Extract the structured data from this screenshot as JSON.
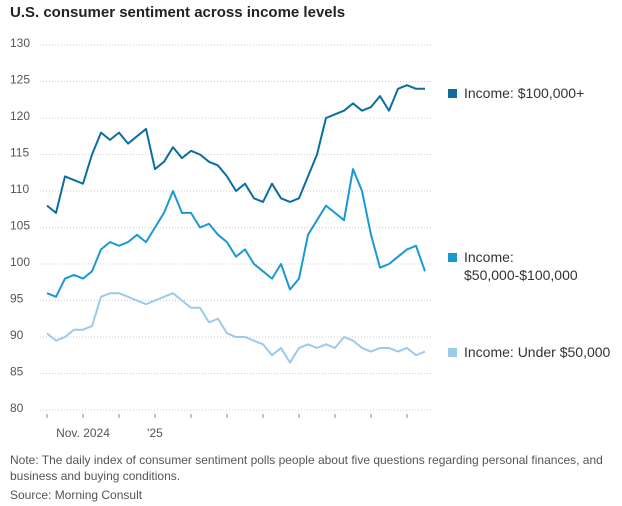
{
  "chart_data": {
    "type": "line",
    "title": "U.S. consumer sentiment across income levels",
    "categories": [
      null,
      null,
      null,
      null,
      "Nov. 2024",
      null,
      null,
      null,
      null,
      null,
      null,
      null,
      "'25",
      null,
      null,
      null,
      null,
      null,
      null,
      null,
      null,
      null,
      null,
      null,
      null,
      null,
      null,
      null,
      null,
      null,
      null,
      null,
      null,
      null,
      null,
      null,
      null,
      null,
      null,
      null,
      null,
      null,
      null
    ],
    "series": [
      {
        "name": "Income: $100,000+",
        "color": "#0b6e9f",
        "values": [
          108,
          107,
          112,
          111.5,
          111,
          115,
          118,
          117,
          118,
          116.5,
          117.5,
          118.5,
          113,
          114,
          116,
          114.5,
          115.5,
          115,
          114,
          113.5,
          112,
          110,
          111,
          109,
          108.5,
          111,
          109,
          108.5,
          109,
          112,
          115,
          120,
          120.5,
          121,
          122,
          121,
          121.5,
          123,
          121,
          124,
          124.5,
          124,
          124
        ]
      },
      {
        "name": "Income: $50,000-$100,000",
        "color": "#1a98d5",
        "values": [
          96,
          95.5,
          98,
          98.5,
          98,
          99,
          102,
          103,
          102.5,
          103,
          104,
          103,
          105,
          107,
          110,
          107,
          107,
          105,
          105.5,
          104,
          103,
          101,
          102,
          100,
          99,
          98,
          100,
          96.5,
          98,
          104,
          106,
          108,
          107,
          106,
          113,
          110,
          104,
          99.5,
          100,
          101,
          102,
          102.5,
          99
        ]
      },
      {
        "name": "Income: Under $50,000",
        "color": "#9ccbe8",
        "values": [
          90.5,
          89.5,
          90,
          91,
          91,
          91.5,
          95.5,
          96,
          96,
          95.5,
          95,
          94.5,
          95,
          95.5,
          96,
          95,
          94,
          94,
          92,
          92.5,
          90.5,
          90,
          90,
          89.5,
          89,
          87.5,
          88.5,
          86.5,
          88.5,
          89,
          88.5,
          89,
          88.5,
          90,
          89.5,
          88.5,
          88,
          88.5,
          88.5,
          88,
          88.5,
          87.5,
          88
        ]
      }
    ],
    "ylim": [
      80,
      130
    ],
    "yticks": [
      80,
      85,
      90,
      95,
      100,
      105,
      110,
      115,
      120,
      125,
      130
    ],
    "grid": true,
    "note": "Note: The daily index of consumer sentiment polls people about five questions regarding personal finances, and business and buying conditions.",
    "source": "Source: Morning Consult"
  }
}
